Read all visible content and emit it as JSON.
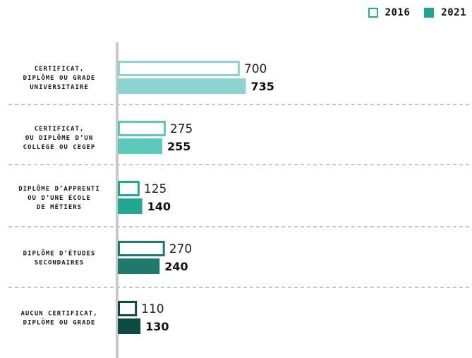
{
  "legend": {
    "series_2016": "2016",
    "series_2021": "2021"
  },
  "chart_data": {
    "type": "bar",
    "orientation": "horizontal",
    "categories": [
      [
        "CERTIFICAT,",
        "DIPLÔME OU GRADE",
        "UNIVERSITAIRE"
      ],
      [
        "CERTIFICAT,",
        "OU DIPLÔME D’UN",
        "COLLEGE OU CEGEP"
      ],
      [
        "DIPLÔME D’APPRENTI",
        "OU D’UNE ÉCOLE",
        "DE MÉTIERS"
      ],
      [
        "DIPLÔME D’ÉTUDES",
        "SECONDAIRES"
      ],
      [
        "AUCUN CERTIFICAT,",
        "DIPLÔME OU GRADE"
      ]
    ],
    "series": [
      {
        "name": "2016",
        "style": "outline",
        "values": [
          700,
          275,
          125,
          270,
          110
        ]
      },
      {
        "name": "2021",
        "style": "filled",
        "values": [
          735,
          255,
          140,
          240,
          130
        ]
      }
    ],
    "category_colors": [
      "#8dd3cf",
      "#5ec9bb",
      "#22a892",
      "#1f7a6d",
      "#0d4a42"
    ],
    "grid": false,
    "legend_position": "top-right",
    "separators": "dashed"
  }
}
